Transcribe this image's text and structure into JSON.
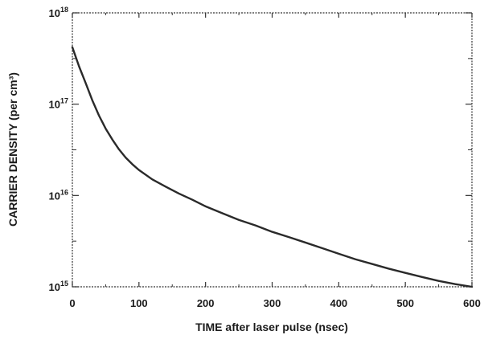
{
  "chart_data": {
    "type": "line",
    "title": "",
    "xlabel": "TIME after laser pulse (nsec)",
    "ylabel": "CARRIER DENSITY (per cm³)",
    "x_scale": "linear",
    "y_scale": "log",
    "xlim": [
      0,
      600
    ],
    "ylim": [
      1000000000000000.0,
      1e+18
    ],
    "x_ticks": [
      0,
      100,
      200,
      300,
      400,
      500,
      600
    ],
    "x_tick_labels": [
      "0",
      "100",
      "200",
      "300",
      "400",
      "500",
      "600"
    ],
    "y_ticks": [
      {
        "value": 1000000000000000.0,
        "base": "10",
        "exp": "15"
      },
      {
        "value": 1e+16,
        "base": "10",
        "exp": "16"
      },
      {
        "value": 1e+17,
        "base": "10",
        "exp": "17"
      },
      {
        "value": 1e+18,
        "base": "10",
        "exp": "18"
      }
    ],
    "grid": false,
    "series": [
      {
        "color": "#2a2a2a",
        "points": [
          [
            0,
            4.2e+17
          ],
          [
            10,
            2.6e+17
          ],
          [
            20,
            1.7e+17
          ],
          [
            30,
            1.1e+17
          ],
          [
            40,
            7.5e+16
          ],
          [
            50,
            5.4e+16
          ],
          [
            60,
            4.1e+16
          ],
          [
            70,
            3.2e+16
          ],
          [
            80,
            2.6e+16
          ],
          [
            90,
            2.2e+16
          ],
          [
            100,
            1.9e+16
          ],
          [
            120,
            1.5e+16
          ],
          [
            140,
            1.25e+16
          ],
          [
            160,
            1.05e+16
          ],
          [
            180,
            9000000000000000.0
          ],
          [
            200,
            7600000000000000.0
          ],
          [
            225,
            6400000000000000.0
          ],
          [
            250,
            5400000000000000.0
          ],
          [
            275,
            4700000000000000.0
          ],
          [
            300,
            4000000000000000.0
          ],
          [
            325,
            3500000000000000.0
          ],
          [
            350,
            3050000000000000.0
          ],
          [
            375,
            2650000000000000.0
          ],
          [
            400,
            2300000000000000.0
          ],
          [
            425,
            2000000000000000.0
          ],
          [
            450,
            1780000000000000.0
          ],
          [
            475,
            1580000000000000.0
          ],
          [
            500,
            1420000000000000.0
          ],
          [
            525,
            1280000000000000.0
          ],
          [
            550,
            1160000000000000.0
          ],
          [
            575,
            1070000000000000.0
          ],
          [
            600,
            1000000000000000.0
          ]
        ]
      }
    ]
  }
}
